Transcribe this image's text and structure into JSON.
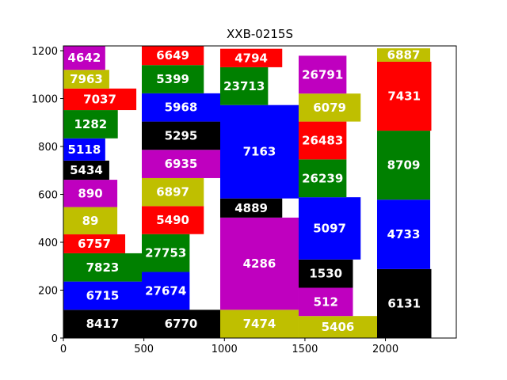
{
  "chart_data": {
    "type": "treemap",
    "title": "XXB-0215S",
    "xlim": [
      0,
      2440
    ],
    "ylim": [
      0,
      1220
    ],
    "xticks": [
      0,
      500,
      1000,
      1500,
      2000
    ],
    "yticks": [
      0,
      200,
      400,
      600,
      800,
      1000,
      1200
    ],
    "grid": false,
    "colors": {
      "blue": "#0000ff",
      "green": "#008000",
      "red": "#ff0000",
      "black": "#000000",
      "magenta": "#bf00bf",
      "olive": "#bfbf00"
    },
    "rects": [
      {
        "label": "8417",
        "x": 0,
        "y": 0,
        "w": 487,
        "h": 118,
        "color": "black"
      },
      {
        "label": "6715",
        "x": 0,
        "y": 118,
        "w": 487,
        "h": 118,
        "color": "blue"
      },
      {
        "label": "7823",
        "x": 0,
        "y": 236,
        "w": 487,
        "h": 118,
        "color": "green"
      },
      {
        "label": "6757",
        "x": 0,
        "y": 354,
        "w": 384,
        "h": 79,
        "color": "red"
      },
      {
        "label": "89",
        "x": 0,
        "y": 433,
        "w": 335,
        "h": 114,
        "color": "olive"
      },
      {
        "label": "890",
        "x": 0,
        "y": 547,
        "w": 335,
        "h": 114,
        "color": "magenta"
      },
      {
        "label": "5434",
        "x": 0,
        "y": 661,
        "w": 285,
        "h": 80,
        "color": "black"
      },
      {
        "label": "5118",
        "x": 0,
        "y": 741,
        "w": 260,
        "h": 93,
        "color": "blue"
      },
      {
        "label": "1282",
        "x": 0,
        "y": 834,
        "w": 338,
        "h": 118,
        "color": "green"
      },
      {
        "label": "7037",
        "x": 0,
        "y": 952,
        "w": 453,
        "h": 90,
        "color": "red"
      },
      {
        "label": "7963",
        "x": 0,
        "y": 1042,
        "w": 285,
        "h": 78,
        "color": "olive"
      },
      {
        "label": "4642",
        "x": 0,
        "y": 1120,
        "w": 260,
        "h": 100,
        "color": "magenta"
      },
      {
        "label": "6770",
        "x": 487,
        "y": 0,
        "w": 487,
        "h": 118,
        "color": "black"
      },
      {
        "label": "27674",
        "x": 487,
        "y": 118,
        "w": 297,
        "h": 158,
        "color": "blue"
      },
      {
        "label": "27753",
        "x": 487,
        "y": 276,
        "w": 297,
        "h": 158,
        "color": "green"
      },
      {
        "label": "5490",
        "x": 487,
        "y": 434,
        "w": 385,
        "h": 117,
        "color": "red"
      },
      {
        "label": "6897",
        "x": 487,
        "y": 551,
        "w": 385,
        "h": 117,
        "color": "olive"
      },
      {
        "label": "6935",
        "x": 487,
        "y": 668,
        "w": 487,
        "h": 118,
        "color": "magenta"
      },
      {
        "label": "5295",
        "x": 487,
        "y": 786,
        "w": 487,
        "h": 118,
        "color": "black"
      },
      {
        "label": "5968",
        "x": 487,
        "y": 904,
        "w": 487,
        "h": 118,
        "color": "blue"
      },
      {
        "label": "5399",
        "x": 487,
        "y": 1022,
        "w": 385,
        "h": 118,
        "color": "green"
      },
      {
        "label": "6649",
        "x": 487,
        "y": 1140,
        "w": 385,
        "h": 80,
        "color": "red"
      },
      {
        "label": "7474",
        "x": 974,
        "y": 0,
        "w": 487,
        "h": 118,
        "color": "olive"
      },
      {
        "label": "4286",
        "x": 974,
        "y": 118,
        "w": 487,
        "h": 385,
        "color": "magenta"
      },
      {
        "label": "4889",
        "x": 974,
        "y": 503,
        "w": 385,
        "h": 80,
        "color": "black"
      },
      {
        "label": "7163",
        "x": 974,
        "y": 583,
        "w": 487,
        "h": 390,
        "color": "blue"
      },
      {
        "label": "23713",
        "x": 974,
        "y": 973,
        "w": 297,
        "h": 158,
        "color": "green"
      },
      {
        "label": "4794",
        "x": 974,
        "y": 1131,
        "w": 385,
        "h": 77,
        "color": "red"
      },
      {
        "label": "5406",
        "x": 1461,
        "y": 0,
        "w": 487,
        "h": 92,
        "color": "olive"
      },
      {
        "label": "512",
        "x": 1461,
        "y": 92,
        "w": 337,
        "h": 118,
        "color": "magenta"
      },
      {
        "label": "1530",
        "x": 1461,
        "y": 210,
        "w": 337,
        "h": 118,
        "color": "black"
      },
      {
        "label": "5097",
        "x": 1461,
        "y": 328,
        "w": 385,
        "h": 260,
        "color": "blue"
      },
      {
        "label": "26239",
        "x": 1461,
        "y": 588,
        "w": 297,
        "h": 158,
        "color": "green"
      },
      {
        "label": "26483",
        "x": 1461,
        "y": 746,
        "w": 297,
        "h": 158,
        "color": "red"
      },
      {
        "label": "6079",
        "x": 1461,
        "y": 904,
        "w": 385,
        "h": 117,
        "color": "olive"
      },
      {
        "label": "26791",
        "x": 1461,
        "y": 1021,
        "w": 297,
        "h": 158,
        "color": "magenta"
      },
      {
        "label": "6131",
        "x": 1948,
        "y": 0,
        "w": 337,
        "h": 288,
        "color": "black"
      },
      {
        "label": "4733",
        "x": 1948,
        "y": 288,
        "w": 330,
        "h": 290,
        "color": "blue"
      },
      {
        "label": "8709",
        "x": 1948,
        "y": 578,
        "w": 330,
        "h": 288,
        "color": "green"
      },
      {
        "label": "7431",
        "x": 1948,
        "y": 866,
        "w": 337,
        "h": 288,
        "color": "red"
      },
      {
        "label": "6887",
        "x": 1948,
        "y": 1154,
        "w": 330,
        "h": 56,
        "color": "olive"
      }
    ]
  }
}
